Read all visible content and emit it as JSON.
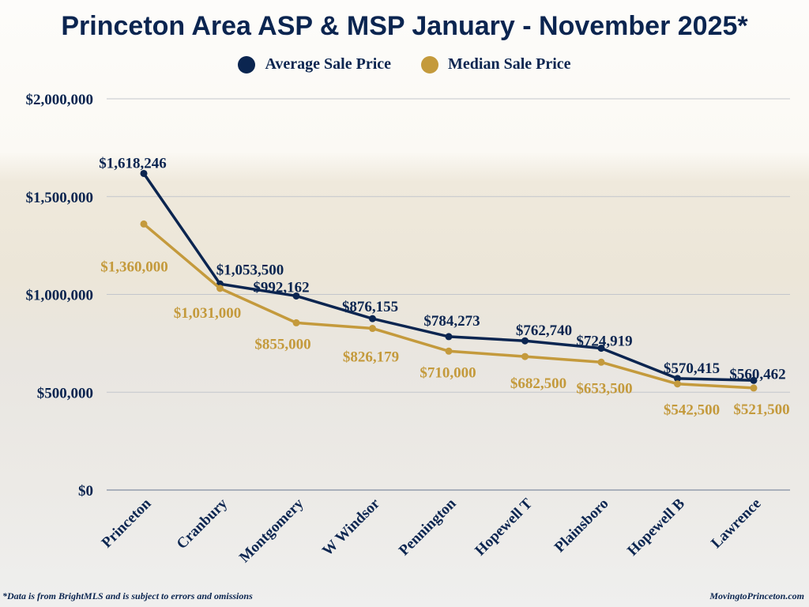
{
  "chart_data": {
    "type": "line",
    "title": "Princeton Area ASP & MSP January - November 2025*",
    "categories": [
      "Princeton",
      "Cranbury",
      "Montgomery",
      "W Windsor",
      "Pennington",
      "Hopewell T",
      "Plainsboro",
      "Hopewell B",
      "Lawrence"
    ],
    "series": [
      {
        "name": "Average Sale Price",
        "color": "#0b2550",
        "values": [
          1618246,
          1053500,
          992162,
          876155,
          784273,
          762740,
          724919,
          570415,
          560462
        ],
        "labels": [
          "$1,618,246",
          "$1,053,500",
          "$992,162",
          "$876,155",
          "$784,273",
          "$762,740",
          "$724,919",
          "$570,415",
          "$560,462"
        ]
      },
      {
        "name": "Median Sale Price",
        "color": "#c49a3c",
        "values": [
          1360000,
          1031000,
          855000,
          826179,
          710000,
          682500,
          653500,
          542500,
          521500
        ],
        "labels": [
          "$1,360,000",
          "$1,031,000",
          "$855,000",
          "$826,179",
          "$710,000",
          "$682,500",
          "$653,500",
          "$542,500",
          "$521,500"
        ]
      }
    ],
    "ylim": [
      0,
      2000000
    ],
    "yticks": [
      0,
      500000,
      1000000,
      1500000,
      2000000
    ],
    "ytick_labels": [
      "$0",
      "$500,000",
      "$1,000,000",
      "$1,500,000",
      "$2,000,000"
    ],
    "grid": true,
    "legend": "top-center"
  },
  "footer": {
    "note": "*Data is from BrightMLS and is subject to errors and omissions",
    "site": "MovingtoPrinceton.com"
  }
}
